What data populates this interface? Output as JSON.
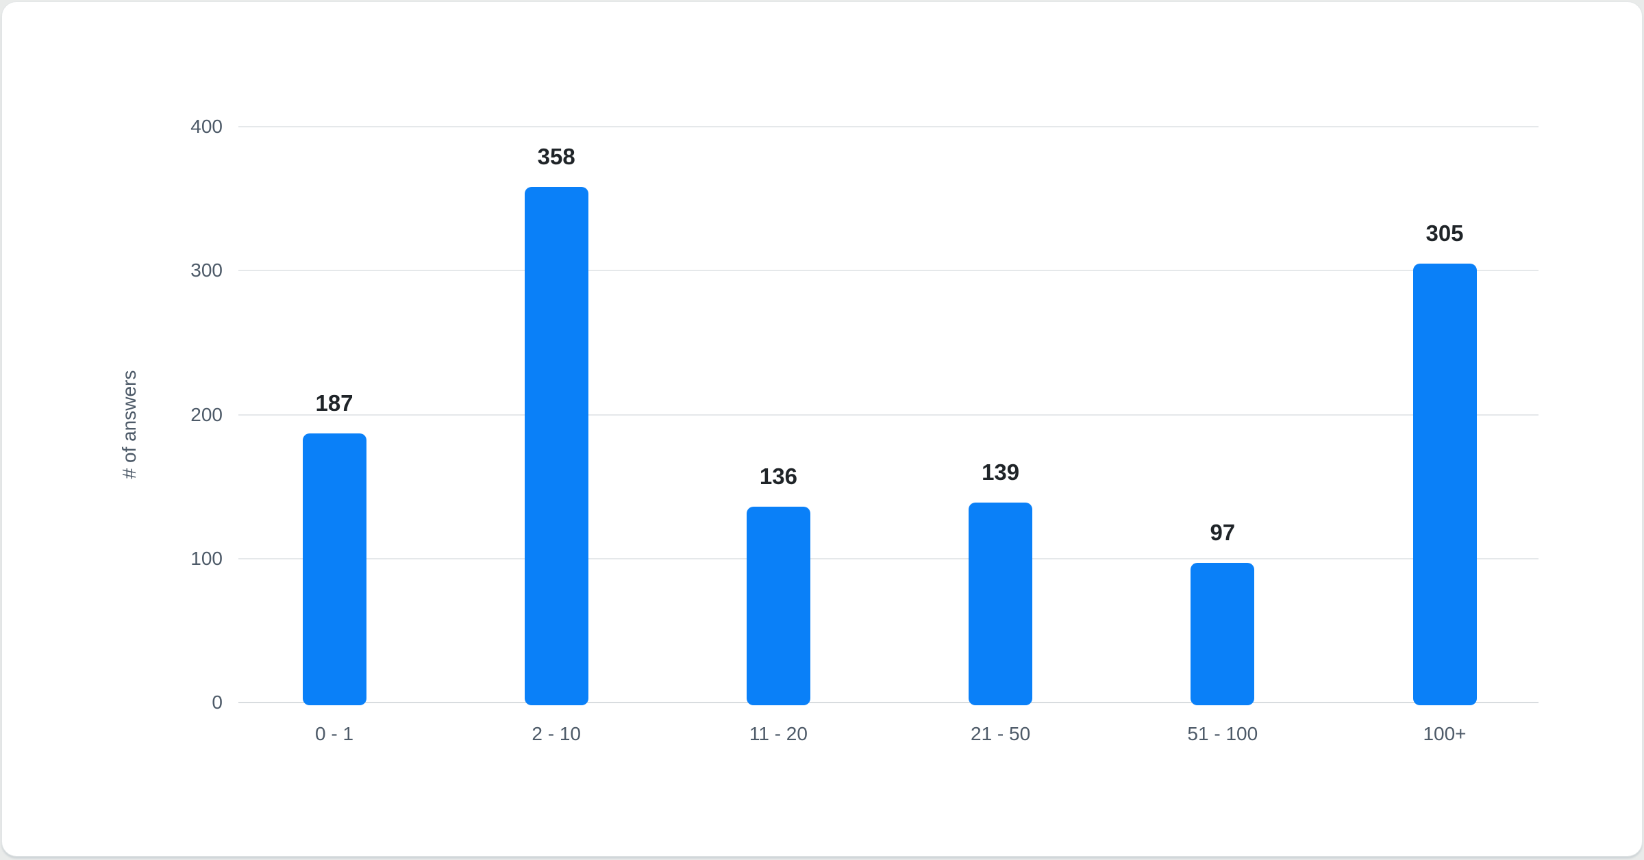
{
  "page": {
    "background": "#e9ebea",
    "card_background": "#ffffff"
  },
  "chart_data": {
    "type": "bar",
    "categories": [
      "0 - 1",
      "2 - 10",
      "11 - 20",
      "21 - 50",
      "51 - 100",
      "100+"
    ],
    "values": [
      187,
      358,
      136,
      139,
      97,
      305
    ],
    "value_labels": [
      "187",
      "358",
      "136",
      "139",
      "97",
      "305"
    ],
    "title": "",
    "xlabel": "",
    "ylabel": "# of answers",
    "ylim": [
      0,
      400
    ],
    "yticks": [
      0,
      100,
      200,
      300,
      400
    ],
    "ytick_labels": [
      "0",
      "100",
      "200",
      "300",
      "400"
    ],
    "grid": true,
    "legend_position": "none",
    "bar_color": "#0a80f8",
    "value_label_color": "#1f2428",
    "axis_label_color": "#4d5a68",
    "gridline_color": "#e5e8ea",
    "zero_line_color": "#d8dcdf"
  }
}
